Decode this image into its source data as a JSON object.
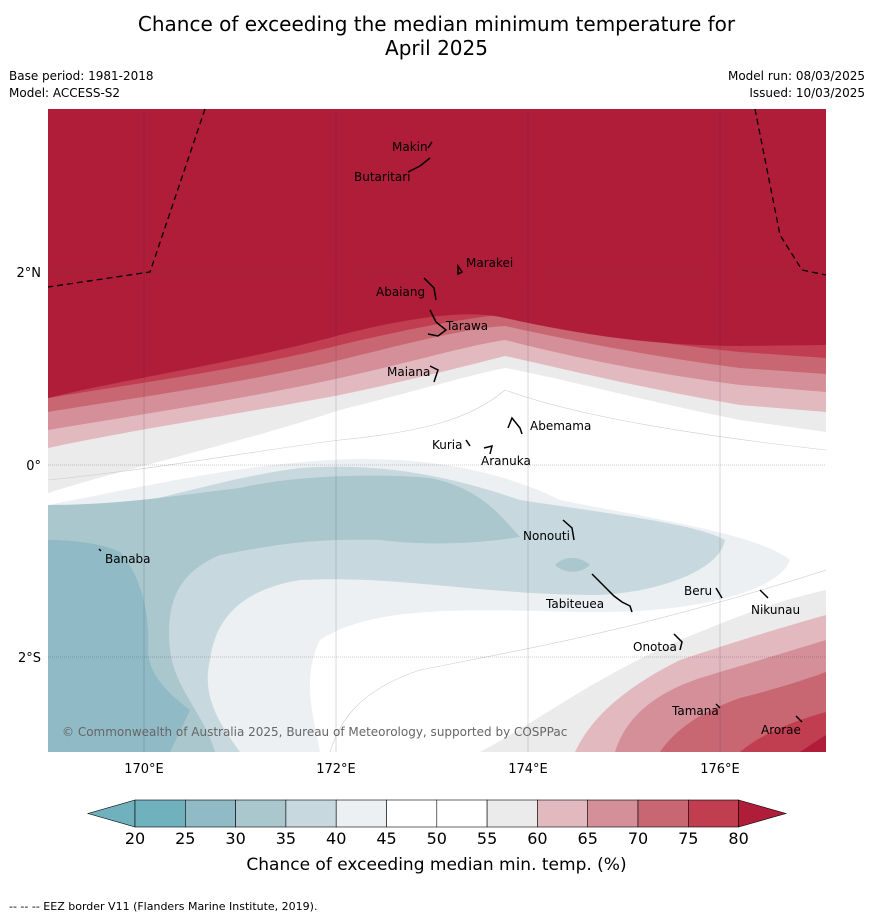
{
  "title_line1": "Chance of exceeding the median minimum temperature for",
  "title_line2": "April 2025",
  "base_period": "Base period: 1981-2018",
  "model": "Model: ACCESS-S2",
  "model_run": "Model run: 08/03/2025",
  "issued": "Issued: 10/03/2025",
  "lat_labels": [
    "2°N",
    "0°",
    "2°S"
  ],
  "lon_labels": [
    "170°E",
    "172°E",
    "174°E",
    "176°E"
  ],
  "islands": [
    "Makin",
    "Butaritari",
    "Marakei",
    "Abaiang",
    "Tarawa",
    "Maiana",
    "Abemama",
    "Kuria",
    "Aranuka",
    "Nonouti",
    "Banaba",
    "Tabiteuea",
    "Beru",
    "Nikunau",
    "Onotoa",
    "Tamana",
    "Arorae"
  ],
  "copyright": "© Commonwealth of Australia 2025, Bureau of Meteorology, supported by COSPPac",
  "colorbar": {
    "ticks": [
      "20",
      "25",
      "30",
      "35",
      "40",
      "45",
      "50",
      "55",
      "60",
      "65",
      "70",
      "75",
      "80"
    ],
    "label": "Chance of exceeding median min. temp. (%)",
    "colors": [
      "#6fb1bd",
      "#8fbac6",
      "#a9c7cd",
      "#c7d9de",
      "#ecf0f3",
      "#ffffff",
      "#ffffff",
      "#ecebeb",
      "#e3b9c0",
      "#d58f99",
      "#c86672",
      "#c13e51",
      "#b01d38"
    ]
  },
  "footer": "--  --  -- EEZ border V11 (Flanders Marine Institute, 2019)."
}
